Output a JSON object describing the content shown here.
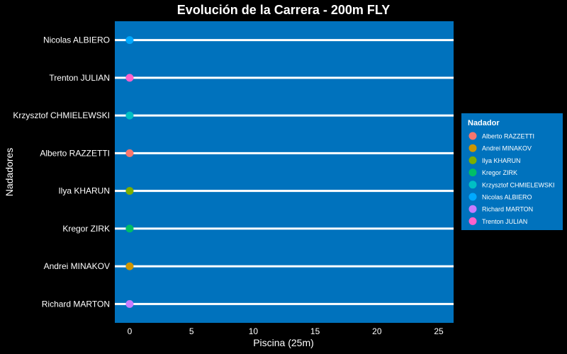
{
  "chart_data": {
    "type": "scatter",
    "title": "Evolución de la Carrera - 200m FLY",
    "xlabel": "Piscina (25m)",
    "ylabel": "Nadadores",
    "xlim": [
      -1.2,
      26.2
    ],
    "xticks": [
      0,
      5,
      10,
      15,
      20,
      25
    ],
    "categories": [
      "Nicolas ALBIERO",
      "Trenton JULIAN",
      "Krzysztof CHMIELEWSKI",
      "Alberto RAZZETTI",
      "Ilya KHARUN",
      "Kregor ZIRK",
      "Andrei MINAKOV",
      "Richard MARTON"
    ],
    "points": [
      {
        "swimmer": "Nicolas ALBIERO",
        "x": 0
      },
      {
        "swimmer": "Trenton JULIAN",
        "x": 0
      },
      {
        "swimmer": "Krzysztof CHMIELEWSKI",
        "x": 0
      },
      {
        "swimmer": "Alberto RAZZETTI",
        "x": 0
      },
      {
        "swimmer": "Ilya KHARUN",
        "x": 0
      },
      {
        "swimmer": "Kregor ZIRK",
        "x": 0
      },
      {
        "swimmer": "Andrei MINAKOV",
        "x": 0
      },
      {
        "swimmer": "Richard MARTON",
        "x": 0
      }
    ],
    "grid": false,
    "legend": {
      "title": "Nadador",
      "position": "right",
      "entries": [
        {
          "name": "Alberto RAZZETTI",
          "color": "#F8766D"
        },
        {
          "name": "Andrei MINAKOV",
          "color": "#CD9600"
        },
        {
          "name": "Ilya KHARUN",
          "color": "#7CAE00"
        },
        {
          "name": "Kregor ZIRK",
          "color": "#00BE67"
        },
        {
          "name": "Krzysztof CHMIELEWSKI",
          "color": "#00BFC4"
        },
        {
          "name": "Nicolas ALBIERO",
          "color": "#00A9FF"
        },
        {
          "name": "Richard MARTON",
          "color": "#C77CFF"
        },
        {
          "name": "Trenton JULIAN",
          "color": "#FF61CC"
        }
      ]
    },
    "colors": {
      "page_background": "#000000",
      "panel_background": "#0072BD",
      "lane_line": "#FFFFFF"
    }
  }
}
